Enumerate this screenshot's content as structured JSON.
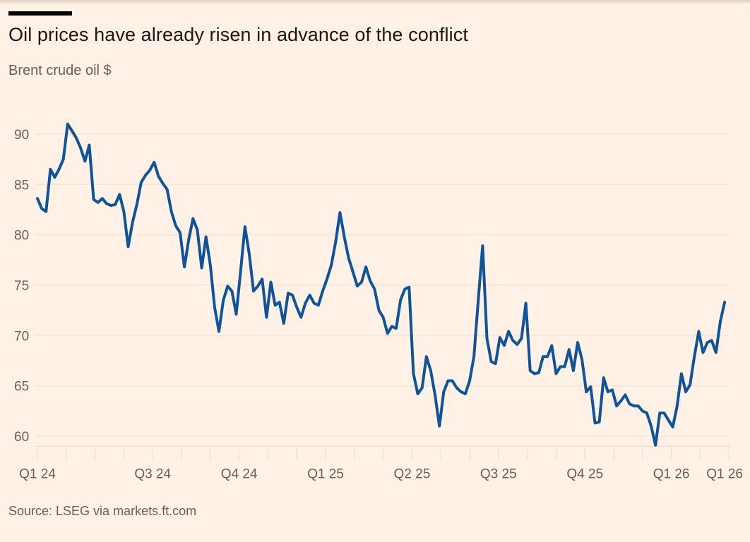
{
  "chart_data": {
    "type": "line",
    "title": "Oil prices have already risen in advance of the conflict",
    "subtitle": "Brent crude oil $",
    "source": "Source: LSEG via markets.ft.com",
    "xlabel": "",
    "ylabel": "Brent crude oil $",
    "x_unit": "months since Jan 2024",
    "x_start": 0,
    "x_step": 0.15,
    "xlim": [
      0,
      24
    ],
    "ylim": [
      59,
      90
    ],
    "grid": true,
    "y_ticks": [
      60,
      65,
      70,
      75,
      80,
      85,
      90
    ],
    "x_minor_ticks": [
      0,
      1,
      2,
      3,
      4,
      5,
      6,
      7,
      8,
      9,
      10,
      11,
      12,
      13,
      14,
      15,
      16,
      17,
      18,
      19,
      20,
      21,
      22,
      23,
      24
    ],
    "x_tick_labels": [
      {
        "label": "Q1 24",
        "at": 0
      },
      {
        "label": "Q3 24",
        "at": 4
      },
      {
        "label": "Q4 24",
        "at": 7
      },
      {
        "label": "Q1 25",
        "at": 10
      },
      {
        "label": "Q2 25",
        "at": 13
      },
      {
        "label": "Q3 25",
        "at": 16
      },
      {
        "label": "Q4 25",
        "at": 19
      },
      {
        "label": "Q1 26",
        "at": 22
      },
      {
        "label": "Q1 26",
        "at": 23.85
      }
    ],
    "series": [
      {
        "name": "Brent crude oil",
        "color": "#0F5499",
        "values": [
          83.6,
          82.6,
          82.3,
          86.5,
          85.7,
          86.5,
          87.5,
          91.0,
          90.3,
          89.6,
          88.6,
          87.3,
          88.9,
          83.5,
          83.2,
          83.6,
          83.1,
          82.9,
          83.0,
          84.0,
          82.3,
          78.8,
          81.2,
          83.0,
          85.2,
          85.9,
          86.4,
          87.2,
          85.8,
          85.1,
          84.5,
          82.3,
          80.9,
          80.2,
          76.8,
          79.5,
          81.6,
          80.5,
          76.7,
          79.8,
          77.0,
          72.8,
          70.4,
          73.5,
          74.9,
          74.4,
          72.1,
          76.3,
          80.8,
          78.1,
          74.4,
          74.9,
          75.6,
          71.8,
          75.3,
          73.0,
          73.3,
          71.2,
          74.2,
          74.0,
          72.8,
          71.8,
          73.2,
          74.0,
          73.2,
          73.0,
          74.4,
          75.6,
          77.0,
          79.3,
          82.2,
          79.8,
          77.7,
          76.3,
          74.9,
          75.3,
          76.8,
          75.4,
          74.6,
          72.5,
          71.8,
          70.2,
          70.9,
          70.7,
          73.5,
          74.6,
          74.8,
          66.2,
          64.2,
          64.8,
          67.9,
          66.5,
          64.1,
          61.0,
          64.4,
          65.5,
          65.5,
          64.8,
          64.4,
          64.2,
          65.5,
          67.9,
          73.5,
          78.9,
          69.7,
          67.4,
          67.2,
          69.8,
          69.0,
          70.4,
          69.5,
          69.1,
          69.7,
          73.2,
          66.5,
          66.2,
          66.3,
          67.9,
          67.9,
          69.0,
          66.2,
          66.9,
          66.9,
          68.6,
          66.5,
          69.3,
          67.6,
          64.4,
          64.9,
          61.3,
          61.4,
          65.8,
          64.4,
          64.6,
          63.0,
          63.5,
          64.1,
          63.2,
          63.0,
          63.0,
          62.5,
          62.3,
          61.0,
          59.1,
          62.3,
          62.3,
          61.6,
          60.9,
          63.0,
          66.2,
          64.4,
          65.1,
          67.9,
          70.4,
          68.3,
          69.3,
          69.5,
          68.3,
          71.4,
          73.3
        ]
      }
    ]
  }
}
